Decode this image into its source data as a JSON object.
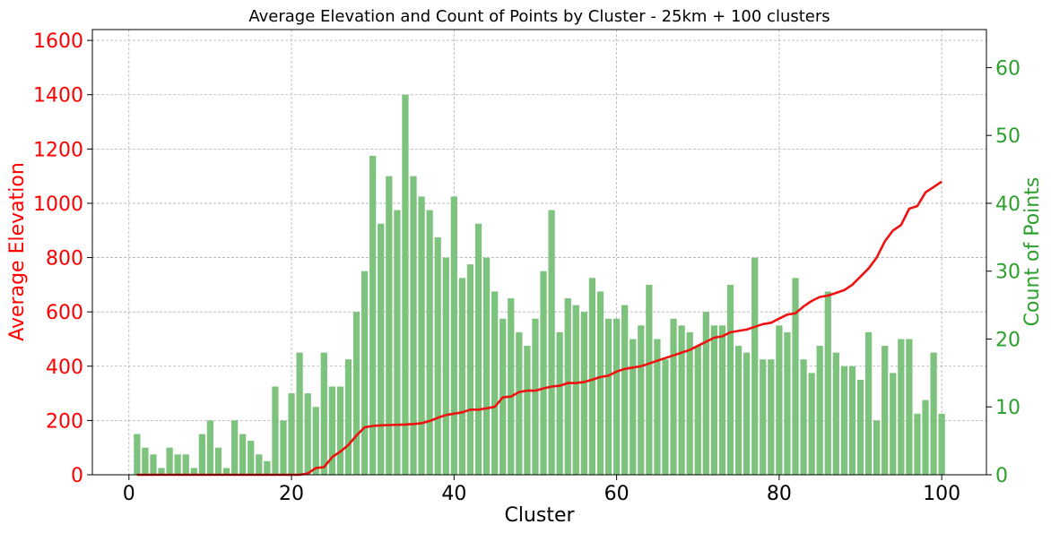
{
  "chart_data": {
    "type": "bar",
    "title": "Average Elevation and Count of Points by Cluster - 25km + 100 clusters",
    "xlabel": "Cluster",
    "ylabel_left": "Average Elevation",
    "ylabel_right": "Count of Points",
    "xlim": [
      -4.5,
      105.5
    ],
    "ylim_left": [
      0,
      1640
    ],
    "ylim_right": [
      0,
      65.6
    ],
    "x_ticks": [
      "0",
      "20",
      "40",
      "60",
      "80",
      "100"
    ],
    "y_left_ticks": [
      "0",
      "200",
      "400",
      "600",
      "800",
      "1000",
      "1200",
      "1400",
      "1600"
    ],
    "y_right_ticks": [
      "0",
      "10",
      "20",
      "30",
      "40",
      "50",
      "60"
    ],
    "grid": true,
    "colors": {
      "left_axis": "#ff0000",
      "right_axis": "#2ca02c",
      "bars": "#7dc37d",
      "line": "#ee1111"
    },
    "categories": [
      1,
      2,
      3,
      4,
      5,
      6,
      7,
      8,
      9,
      10,
      11,
      12,
      13,
      14,
      15,
      16,
      17,
      18,
      19,
      20,
      21,
      22,
      23,
      24,
      25,
      26,
      27,
      28,
      29,
      30,
      31,
      32,
      33,
      34,
      35,
      36,
      37,
      38,
      39,
      40,
      41,
      42,
      43,
      44,
      45,
      46,
      47,
      48,
      49,
      50,
      51,
      52,
      53,
      54,
      55,
      56,
      57,
      58,
      59,
      60,
      61,
      62,
      63,
      64,
      65,
      66,
      67,
      68,
      69,
      70,
      71,
      72,
      73,
      74,
      75,
      76,
      77,
      78,
      79,
      80,
      81,
      82,
      83,
      84,
      85,
      86,
      87,
      88,
      89,
      90,
      91,
      92,
      93,
      94,
      95,
      96,
      97,
      98,
      99,
      100
    ],
    "series": [
      {
        "axis": "right",
        "kind": "bar",
        "values": [
          6,
          4,
          3,
          1,
          4,
          3,
          3,
          1,
          6,
          8,
          4,
          1,
          8,
          6,
          5,
          3,
          2,
          13,
          8,
          12,
          18,
          12,
          10,
          18,
          13,
          13,
          17,
          24,
          30,
          47,
          37,
          44,
          39,
          56,
          44,
          41,
          39,
          35,
          32,
          41,
          29,
          31,
          37,
          32,
          27,
          23,
          26,
          21,
          19,
          23,
          30,
          39,
          21,
          26,
          25,
          24,
          29,
          27,
          23,
          23,
          25,
          20,
          22,
          28,
          20,
          17,
          23,
          22,
          21,
          19,
          24,
          22,
          22,
          28,
          19,
          18,
          32,
          17,
          17,
          22,
          21,
          29,
          17,
          15,
          19,
          27,
          18,
          16,
          16,
          14,
          21,
          8,
          19,
          15,
          20,
          20,
          9,
          11,
          18,
          9
        ]
      },
      {
        "axis": "left",
        "kind": "line",
        "values": [
          0,
          0,
          0,
          0,
          0,
          0,
          0,
          0,
          0,
          0,
          0,
          0,
          0,
          0,
          0,
          0,
          0,
          0,
          0,
          0,
          0,
          5,
          25,
          28,
          65,
          85,
          110,
          145,
          175,
          180,
          182,
          183,
          184,
          185,
          187,
          190,
          198,
          210,
          220,
          225,
          230,
          240,
          240,
          245,
          250,
          285,
          288,
          305,
          310,
          310,
          318,
          325,
          328,
          338,
          338,
          342,
          350,
          360,
          365,
          380,
          390,
          395,
          400,
          410,
          420,
          430,
          440,
          450,
          460,
          475,
          490,
          505,
          510,
          525,
          530,
          535,
          545,
          555,
          560,
          575,
          590,
          595,
          620,
          640,
          655,
          660,
          670,
          680,
          700,
          730,
          760,
          800,
          860,
          900,
          920,
          980,
          990,
          1040,
          1060,
          1080
        ]
      }
    ]
  }
}
